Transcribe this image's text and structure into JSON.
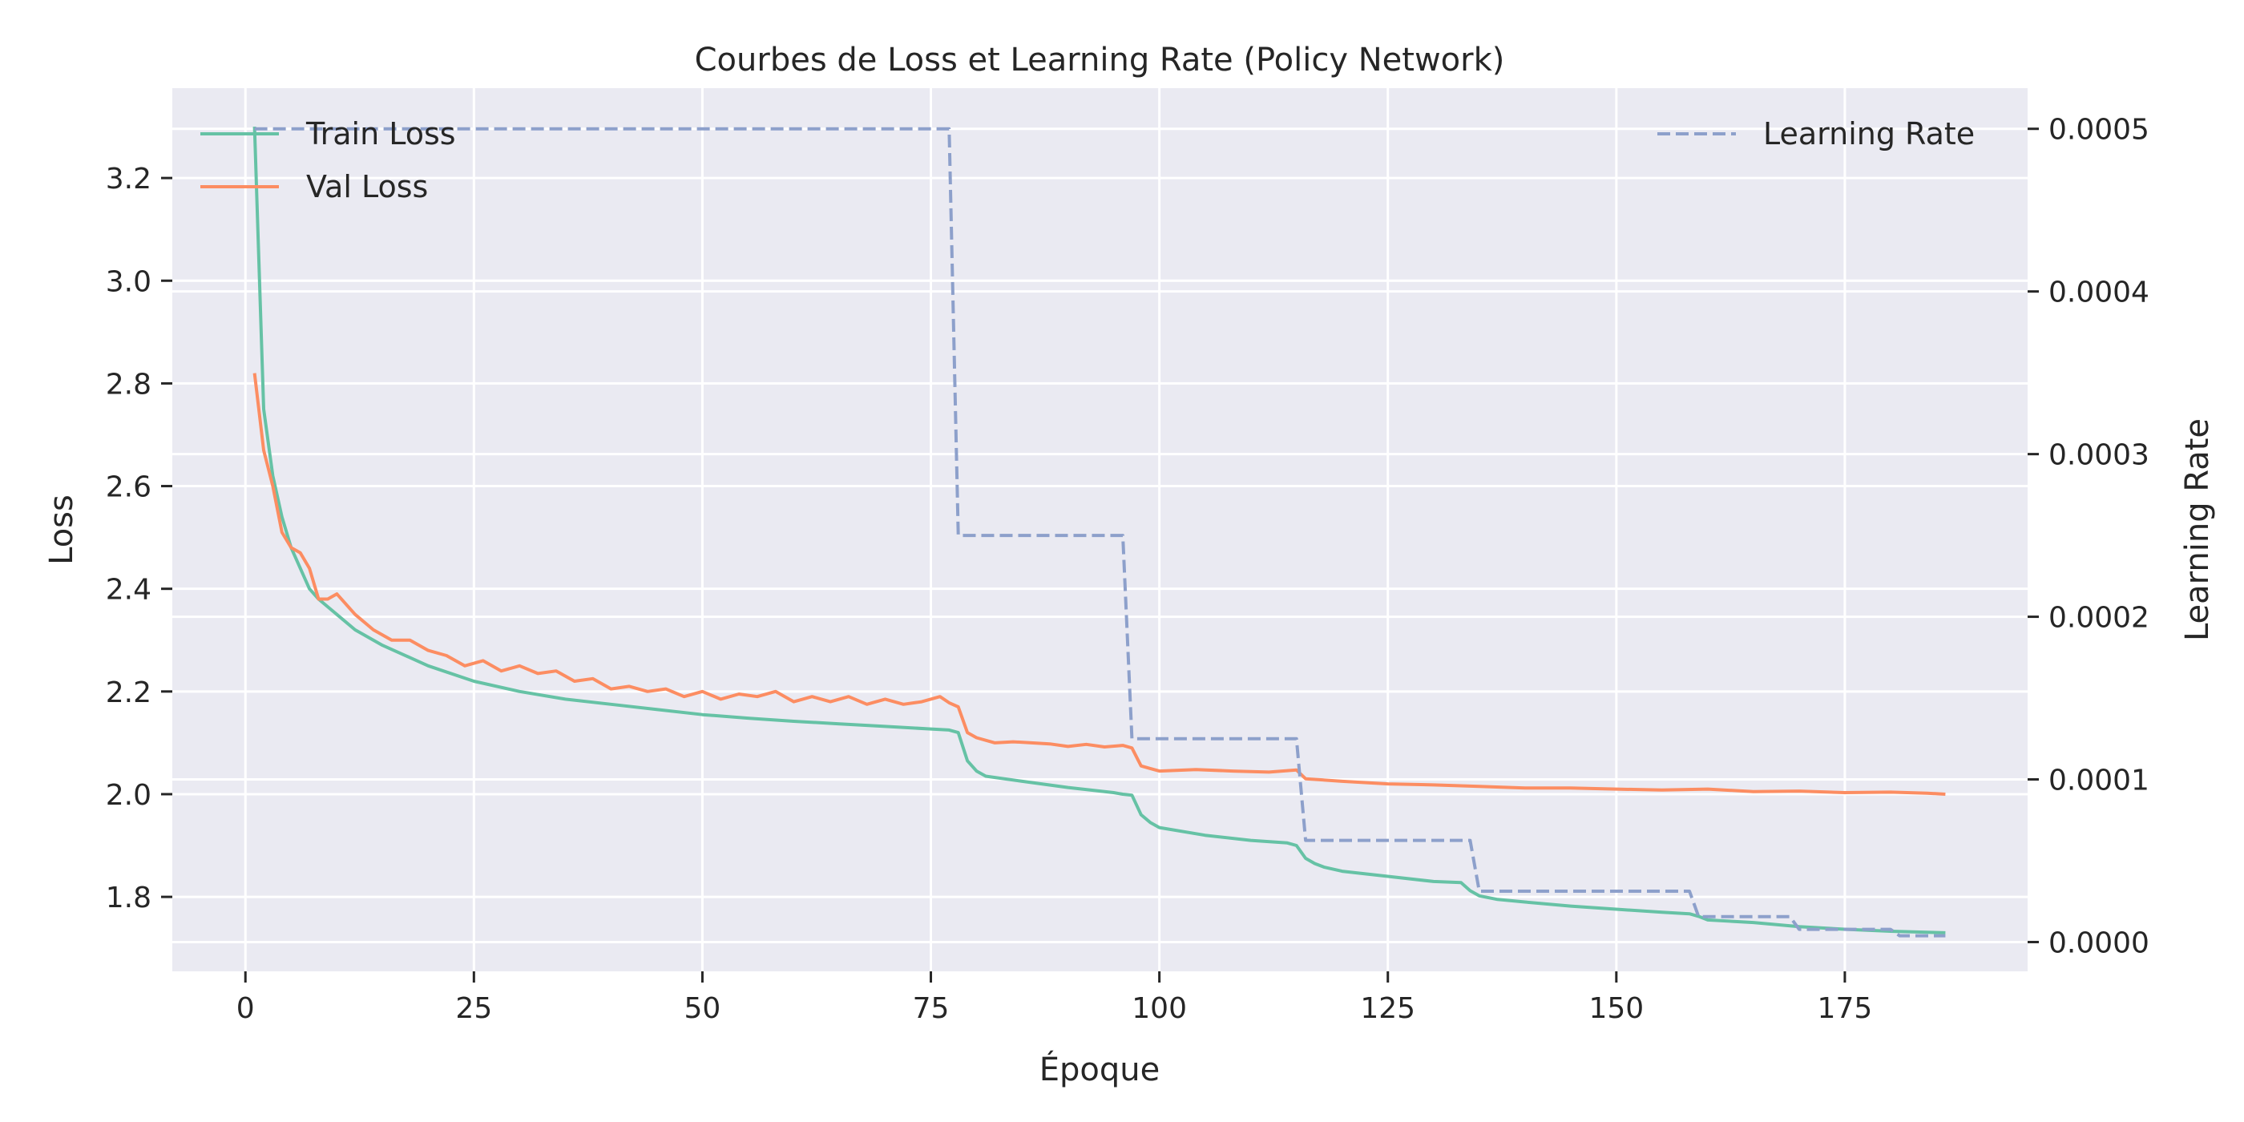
{
  "chart_data": {
    "type": "line",
    "title": "Courbes de Loss et Learning Rate (Policy Network)",
    "xlabel": "Époque",
    "ylabel": "Loss",
    "y2label": "Learning Rate",
    "xlim": [
      -8,
      195
    ],
    "ylim": [
      1.655,
      3.375
    ],
    "y2lim": [
      -1.8e-05,
      0.000525
    ],
    "x_ticks": [
      0,
      25,
      50,
      75,
      100,
      125,
      150,
      175
    ],
    "y_ticks": [
      1.8,
      2.0,
      2.2,
      2.4,
      2.6,
      2.8,
      3.0,
      3.2
    ],
    "y_tick_labels": [
      "1.8",
      "2.0",
      "2.2",
      "2.4",
      "2.6",
      "2.8",
      "3.0",
      "3.2"
    ],
    "y2_ticks": [
      0.0,
      0.0001,
      0.0002,
      0.0003,
      0.0004,
      0.0005
    ],
    "y2_tick_labels": [
      "0.0000",
      "0.0001",
      "0.0002",
      "0.0003",
      "0.0004",
      "0.0005"
    ],
    "grid": true,
    "background": "#eaeaf2",
    "legend_left": "top-left",
    "legend_right": "top-right",
    "series": [
      {
        "name": "Train Loss",
        "axis": "left",
        "color": "#66c2a5",
        "style": "solid",
        "x": [
          1,
          2,
          3,
          4,
          5,
          6,
          7,
          8,
          10,
          12,
          15,
          20,
          25,
          30,
          35,
          40,
          45,
          50,
          55,
          60,
          65,
          70,
          75,
          77,
          78,
          79,
          80,
          81,
          85,
          90,
          95,
          96,
          97,
          98,
          99,
          100,
          105,
          110,
          114,
          115,
          116,
          117,
          118,
          120,
          125,
          130,
          133,
          134,
          135,
          137,
          140,
          145,
          150,
          155,
          158,
          159,
          160,
          165,
          170,
          175,
          180,
          186
        ],
        "y": [
          3.3,
          2.75,
          2.62,
          2.54,
          2.48,
          2.44,
          2.4,
          2.38,
          2.35,
          2.32,
          2.29,
          2.25,
          2.22,
          2.2,
          2.185,
          2.175,
          2.165,
          2.155,
          2.148,
          2.142,
          2.137,
          2.132,
          2.127,
          2.125,
          2.12,
          2.065,
          2.045,
          2.035,
          2.025,
          2.013,
          2.003,
          2.0,
          1.998,
          1.96,
          1.945,
          1.935,
          1.92,
          1.91,
          1.905,
          1.9,
          1.875,
          1.865,
          1.858,
          1.85,
          1.84,
          1.83,
          1.828,
          1.812,
          1.802,
          1.795,
          1.79,
          1.782,
          1.776,
          1.77,
          1.767,
          1.762,
          1.755,
          1.75,
          1.742,
          1.737,
          1.733,
          1.73
        ]
      },
      {
        "name": "Val Loss",
        "axis": "left",
        "color": "#fc8d62",
        "style": "solid",
        "x": [
          1,
          2,
          3,
          4,
          5,
          6,
          7,
          8,
          9,
          10,
          12,
          14,
          16,
          18,
          20,
          22,
          24,
          26,
          28,
          30,
          32,
          34,
          36,
          38,
          40,
          42,
          44,
          46,
          48,
          50,
          52,
          54,
          56,
          58,
          60,
          62,
          64,
          66,
          68,
          70,
          72,
          74,
          76,
          77,
          78,
          79,
          80,
          82,
          84,
          86,
          88,
          90,
          92,
          94,
          96,
          97,
          98,
          99,
          100,
          104,
          108,
          112,
          115,
          116,
          120,
          125,
          130,
          135,
          140,
          145,
          150,
          155,
          160,
          165,
          170,
          175,
          180,
          184,
          186
        ],
        "y": [
          2.82,
          2.67,
          2.6,
          2.51,
          2.48,
          2.47,
          2.44,
          2.38,
          2.38,
          2.39,
          2.35,
          2.32,
          2.3,
          2.3,
          2.28,
          2.27,
          2.25,
          2.26,
          2.24,
          2.25,
          2.235,
          2.24,
          2.22,
          2.225,
          2.205,
          2.21,
          2.2,
          2.205,
          2.19,
          2.2,
          2.185,
          2.195,
          2.19,
          2.2,
          2.18,
          2.19,
          2.18,
          2.19,
          2.175,
          2.185,
          2.175,
          2.18,
          2.19,
          2.178,
          2.17,
          2.12,
          2.11,
          2.1,
          2.102,
          2.1,
          2.098,
          2.093,
          2.097,
          2.092,
          2.095,
          2.09,
          2.055,
          2.05,
          2.045,
          2.048,
          2.045,
          2.043,
          2.047,
          2.03,
          2.025,
          2.02,
          2.018,
          2.015,
          2.012,
          2.012,
          2.01,
          2.008,
          2.01,
          2.005,
          2.006,
          2.003,
          2.004,
          2.002,
          2.0
        ]
      },
      {
        "name": "Learning Rate",
        "axis": "right",
        "color": "#8da0cb",
        "style": "dashed",
        "x": [
          1,
          77,
          78,
          96,
          97,
          115,
          116,
          134,
          135,
          158,
          159,
          169,
          170,
          180,
          181,
          186
        ],
        "y": [
          0.0005,
          0.0005,
          0.00025,
          0.00025,
          0.000125,
          0.000125,
          6.25e-05,
          6.25e-05,
          3.125e-05,
          3.125e-05,
          1.56e-05,
          1.56e-05,
          7.8e-06,
          7.8e-06,
          3.9e-06,
          3.9e-06
        ]
      }
    ]
  }
}
